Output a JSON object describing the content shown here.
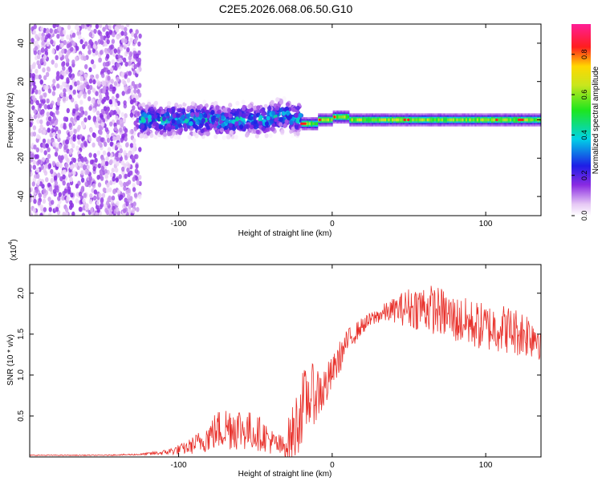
{
  "title": "C2E5.2026.068.06.50.G10",
  "chart_data": [
    {
      "type": "heatmap",
      "title": "C2E5.2026.068.06.50.G10",
      "xlabel": "Height of straight line (km)",
      "ylabel": "Frequency (Hz)",
      "xlim": [
        -197,
        136
      ],
      "ylim": [
        -50,
        50
      ],
      "xticks": [
        -100,
        0,
        100
      ],
      "xtick_labels": [
        "-100",
        "0",
        "100"
      ],
      "yticks": [
        -40,
        -20,
        0,
        20,
        40
      ],
      "ytick_labels": [
        "-40",
        "-20",
        "0",
        "20",
        "40"
      ],
      "colorbar": {
        "label": "Normalized spectral amplitude",
        "range": [
          0,
          0.95
        ],
        "ticks": [
          0,
          0.2,
          0.4,
          0.6,
          0.8
        ],
        "tick_labels": [
          "0.0",
          "0.2",
          "0.4",
          "0.6",
          "0.8"
        ],
        "colormap": "rainbow (white-violet-blue-cyan-green-yellow-red-magenta)"
      },
      "features": [
        {
          "description": "scattered low-amplitude noise",
          "x_range": [
            -197,
            -125
          ],
          "freq_range": [
            -50,
            50
          ],
          "amplitude": 0.1
        },
        {
          "description": "broad signal band",
          "x_range": [
            -125,
            -20
          ],
          "freq_center": 0,
          "freq_halfwidth": 8,
          "amplitude": 0.3
        },
        {
          "description": "narrow carrier band",
          "x_range": [
            -20,
            136
          ],
          "freq_center": 0,
          "freq_halfwidth": 3,
          "amplitude": 0.65
        }
      ]
    },
    {
      "type": "line",
      "title": "",
      "xlabel": "Height of straight line (km)",
      "ylabel": "SNR (10 * v/v)",
      "y_scale_label": "(x10",
      "y_scale_exp": "4",
      "y_scale_close": ")",
      "xlim": [
        -197,
        136
      ],
      "ylim": [
        0,
        2.35
      ],
      "xticks": [
        -100,
        0,
        100
      ],
      "xtick_labels": [
        "-100",
        "0",
        "100"
      ],
      "yticks": [
        0.5,
        1.0,
        1.5,
        2.0
      ],
      "ytick_labels": [
        "0.5",
        "1.0",
        "1.5",
        "2.0"
      ],
      "series": [
        {
          "name": "SNR",
          "color": "#e8302a",
          "x": [
            -197,
            -150,
            -125,
            -110,
            -95,
            -85,
            -75,
            -65,
            -55,
            -45,
            -38,
            -32,
            -25,
            -20,
            -15,
            -10,
            -5,
            0,
            5,
            10,
            20,
            30,
            40,
            50,
            60,
            70,
            80,
            90,
            100,
            110,
            120,
            136
          ],
          "y": [
            0.02,
            0.02,
            0.03,
            0.05,
            0.1,
            0.18,
            0.3,
            0.35,
            0.3,
            0.25,
            0.15,
            0.1,
            0.25,
            0.55,
            0.7,
            0.75,
            0.8,
            1.0,
            1.2,
            1.4,
            1.6,
            1.72,
            1.78,
            1.8,
            1.8,
            1.75,
            1.65,
            1.6,
            1.55,
            1.55,
            1.5,
            1.45
          ],
          "noise_amplitude": [
            0.005,
            0.005,
            0.01,
            0.03,
            0.08,
            0.15,
            0.25,
            0.3,
            0.25,
            0.2,
            0.15,
            0.15,
            0.4,
            0.45,
            0.4,
            0.35,
            0.3,
            0.2,
            0.2,
            0.15,
            0.1,
            0.1,
            0.15,
            0.25,
            0.3,
            0.3,
            0.3,
            0.3,
            0.3,
            0.3,
            0.3,
            0.3
          ]
        }
      ]
    }
  ]
}
